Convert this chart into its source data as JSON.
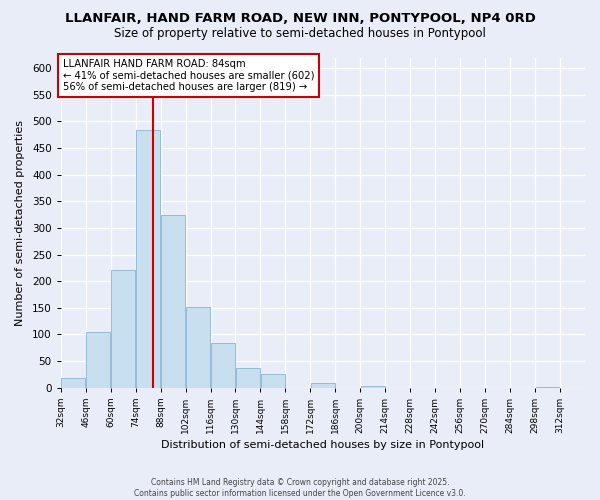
{
  "title1": "LLANFAIR, HAND FARM ROAD, NEW INN, PONTYPOOL, NP4 0RD",
  "title2": "Size of property relative to semi-detached houses in Pontypool",
  "xlabel": "Distribution of semi-detached houses by size in Pontypool",
  "ylabel": "Number of semi-detached properties",
  "bin_labels": [
    "32sqm",
    "46sqm",
    "60sqm",
    "74sqm",
    "88sqm",
    "102sqm",
    "116sqm",
    "130sqm",
    "144sqm",
    "158sqm",
    "172sqm",
    "186sqm",
    "200sqm",
    "214sqm",
    "228sqm",
    "242sqm",
    "256sqm",
    "270sqm",
    "284sqm",
    "298sqm",
    "312sqm"
  ],
  "bin_left_edges": [
    32,
    46,
    60,
    74,
    88,
    102,
    116,
    130,
    144,
    158,
    172,
    186,
    200,
    214,
    228,
    242,
    256,
    270,
    284,
    298
  ],
  "bin_width": 14,
  "bar_heights": [
    18,
    104,
    221,
    483,
    325,
    152,
    84,
    37,
    26,
    0,
    8,
    0,
    4,
    0,
    0,
    0,
    0,
    0,
    0,
    2
  ],
  "bar_color": "#c8dff0",
  "bar_edge_color": "#8ab4d4",
  "property_size": 84,
  "property_line_color": "#cc0000",
  "annotation_title": "LLANFAIR HAND FARM ROAD: 84sqm",
  "annotation_line1": "← 41% of semi-detached houses are smaller (602)",
  "annotation_line2": "56% of semi-detached houses are larger (819) →",
  "xlim": [
    32,
    326
  ],
  "ylim": [
    0,
    620
  ],
  "yticks": [
    0,
    50,
    100,
    150,
    200,
    250,
    300,
    350,
    400,
    450,
    500,
    550,
    600
  ],
  "footer1": "Contains HM Land Registry data © Crown copyright and database right 2025.",
  "footer2": "Contains public sector information licensed under the Open Government Licence v3.0.",
  "background_color": "#e8edf8",
  "plot_bg_color": "#e8edf8",
  "grid_color": "#ffffff"
}
